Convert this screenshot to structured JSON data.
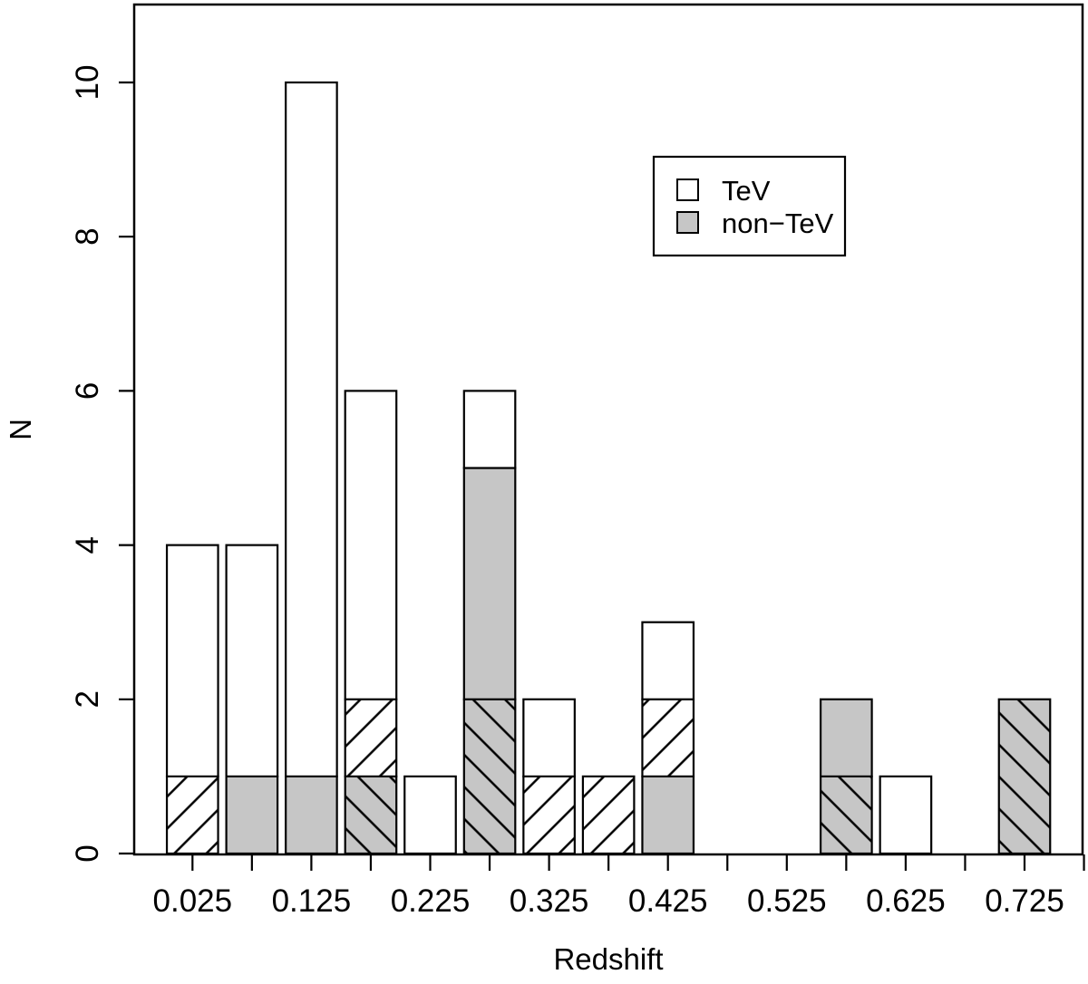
{
  "chart_data": {
    "type": "bar",
    "subtype": "stacked-histogram",
    "title": "",
    "xlabel": "Redshift",
    "ylabel": "N",
    "bin_width": 0.05,
    "xlim": [
      -0.027,
      0.787
    ],
    "ylim": [
      0,
      11
    ],
    "grid": false,
    "y_ticks": [
      {
        "v": 0,
        "label": "0"
      },
      {
        "v": 2,
        "label": "2"
      },
      {
        "v": 4,
        "label": "4"
      },
      {
        "v": 6,
        "label": "6"
      },
      {
        "v": 8,
        "label": "8"
      },
      {
        "v": 10,
        "label": "10"
      }
    ],
    "x_ticks": [
      {
        "v": 0.025,
        "label": "0.025"
      },
      {
        "v": 0.075,
        "label": ""
      },
      {
        "v": 0.125,
        "label": "0.125"
      },
      {
        "v": 0.175,
        "label": ""
      },
      {
        "v": 0.225,
        "label": "0.225"
      },
      {
        "v": 0.275,
        "label": ""
      },
      {
        "v": 0.325,
        "label": "0.325"
      },
      {
        "v": 0.375,
        "label": ""
      },
      {
        "v": 0.425,
        "label": "0.425"
      },
      {
        "v": 0.475,
        "label": ""
      },
      {
        "v": 0.525,
        "label": "0.525"
      },
      {
        "v": 0.575,
        "label": ""
      },
      {
        "v": 0.625,
        "label": "0.625"
      },
      {
        "v": 0.675,
        "label": ""
      },
      {
        "v": 0.725,
        "label": "0.725"
      },
      {
        "v": 0.775,
        "label": ""
      }
    ],
    "legend": {
      "position": "top-right",
      "items": [
        {
          "label": "TeV",
          "fill": "white",
          "hatched": false
        },
        {
          "label": "non−TeV",
          "fill": "gray",
          "hatched": false
        }
      ]
    },
    "colors": {
      "white": "#ffffff",
      "gray": "#c6c6c6",
      "line": "#000000"
    },
    "hatch": {
      "white_direction": "/",
      "gray_direction": "\\"
    },
    "bars": [
      {
        "z": 0.025,
        "total": 4,
        "segments": [
          {
            "count": 1,
            "fill": "white",
            "hatched": true
          },
          {
            "count": 3,
            "fill": "white",
            "hatched": false
          }
        ]
      },
      {
        "z": 0.075,
        "total": 4,
        "segments": [
          {
            "count": 1,
            "fill": "gray",
            "hatched": false
          },
          {
            "count": 3,
            "fill": "white",
            "hatched": false
          }
        ]
      },
      {
        "z": 0.125,
        "total": 10,
        "segments": [
          {
            "count": 1,
            "fill": "gray",
            "hatched": false
          },
          {
            "count": 9,
            "fill": "white",
            "hatched": false
          }
        ]
      },
      {
        "z": 0.175,
        "total": 6,
        "segments": [
          {
            "count": 1,
            "fill": "gray",
            "hatched": true
          },
          {
            "count": 1,
            "fill": "white",
            "hatched": true
          },
          {
            "count": 4,
            "fill": "white",
            "hatched": false
          }
        ]
      },
      {
        "z": 0.225,
        "total": 1,
        "segments": [
          {
            "count": 1,
            "fill": "white",
            "hatched": false
          }
        ]
      },
      {
        "z": 0.275,
        "total": 6,
        "segments": [
          {
            "count": 2,
            "fill": "gray",
            "hatched": true
          },
          {
            "count": 3,
            "fill": "gray",
            "hatched": false
          },
          {
            "count": 1,
            "fill": "white",
            "hatched": false
          }
        ]
      },
      {
        "z": 0.325,
        "total": 2,
        "segments": [
          {
            "count": 1,
            "fill": "white",
            "hatched": true
          },
          {
            "count": 1,
            "fill": "white",
            "hatched": false
          }
        ]
      },
      {
        "z": 0.375,
        "total": 1,
        "segments": [
          {
            "count": 1,
            "fill": "white",
            "hatched": true
          }
        ]
      },
      {
        "z": 0.425,
        "total": 3,
        "segments": [
          {
            "count": 1,
            "fill": "gray",
            "hatched": false
          },
          {
            "count": 1,
            "fill": "white",
            "hatched": true
          },
          {
            "count": 1,
            "fill": "white",
            "hatched": false
          }
        ]
      },
      {
        "z": 0.575,
        "total": 2,
        "segments": [
          {
            "count": 1,
            "fill": "gray",
            "hatched": true
          },
          {
            "count": 1,
            "fill": "gray",
            "hatched": false
          }
        ]
      },
      {
        "z": 0.625,
        "total": 1,
        "segments": [
          {
            "count": 1,
            "fill": "white",
            "hatched": false
          }
        ]
      },
      {
        "z": 0.725,
        "total": 2,
        "segments": [
          {
            "count": 2,
            "fill": "gray",
            "hatched": true
          }
        ]
      }
    ]
  }
}
